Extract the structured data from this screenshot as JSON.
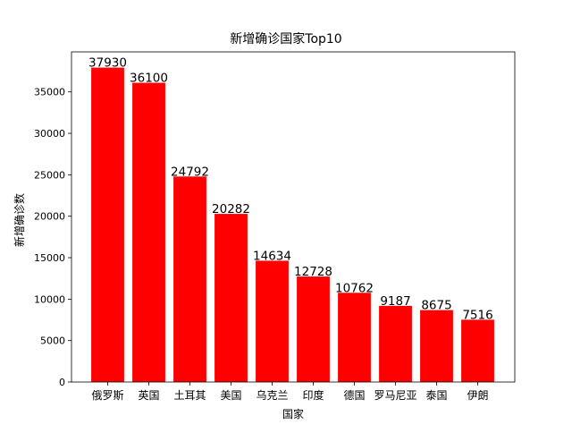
{
  "chart_data": {
    "type": "bar",
    "title": "新增确诊国家Top10",
    "xlabel": "国家",
    "ylabel": "新增确诊数",
    "categories": [
      "俄罗斯",
      "英国",
      "土耳其",
      "美国",
      "乌克兰",
      "印度",
      "德国",
      "罗马尼亚",
      "泰国",
      "伊朗"
    ],
    "values": [
      37930,
      36100,
      24792,
      20282,
      14634,
      12728,
      10762,
      9187,
      8675,
      7516
    ],
    "yticks": [
      0,
      5000,
      10000,
      15000,
      20000,
      25000,
      30000,
      35000
    ],
    "ylim": [
      0,
      39826.5
    ],
    "bar_color": "#ff0000",
    "grid": false,
    "legend": false
  }
}
